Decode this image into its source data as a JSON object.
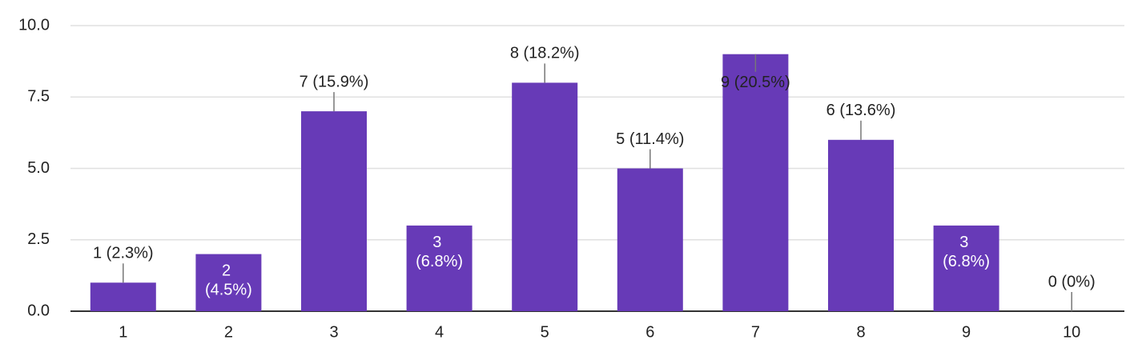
{
  "chart_data": {
    "type": "bar",
    "categories": [
      "1",
      "2",
      "3",
      "4",
      "5",
      "6",
      "7",
      "8",
      "9",
      "10"
    ],
    "values": [
      1,
      2,
      7,
      3,
      8,
      5,
      9,
      6,
      3,
      0
    ],
    "value_labels": [
      "1 (2.3%)",
      "2 (4.5%)",
      "7 (15.9%)",
      "3 (6.8%)",
      "8 (18.2%)",
      "5 (11.4%)",
      "9 (20.5%)",
      "6 (13.6%)",
      "3 (6.8%)",
      "0 (0%)"
    ],
    "color": "#673ab7",
    "ylim": [
      0,
      10
    ],
    "yticks": [
      {
        "value": 0,
        "label": "0.0"
      },
      2.5,
      {
        "value": 5,
        "label": "5.0"
      },
      7.5,
      {
        "value": 10,
        "label": "10.0"
      }
    ],
    "grid": true
  }
}
